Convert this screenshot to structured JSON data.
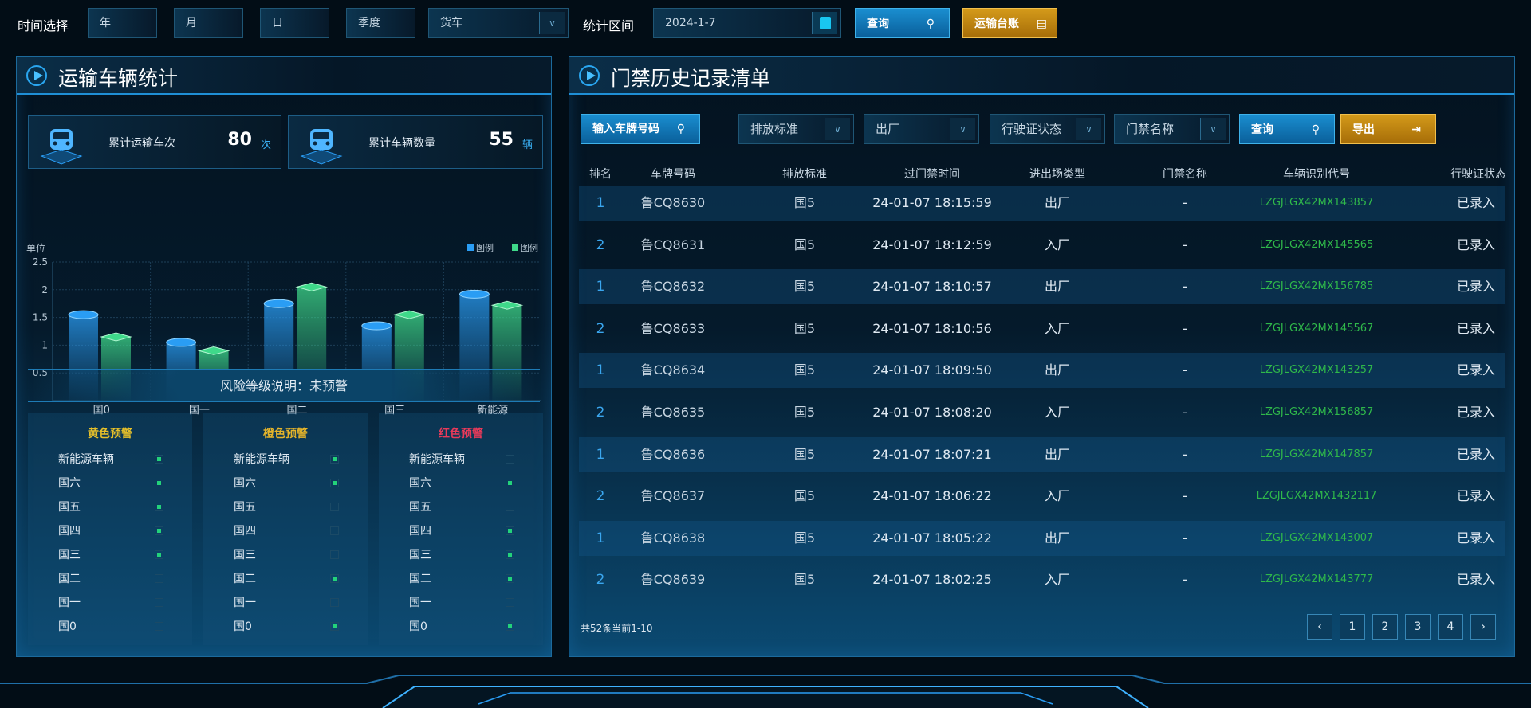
{
  "toolbar": {
    "time_label": "时间选择",
    "year": "年",
    "month": "月",
    "day": "日",
    "quarter": "季度",
    "vehicle_type": "货车",
    "range_label": "统计区间",
    "date": "2024-1-7",
    "query": "查询",
    "ledger": "运输台账"
  },
  "left": {
    "title": "运输车辆统计",
    "cards": [
      {
        "label": "累计运输车次",
        "value": "80",
        "unit": "次"
      },
      {
        "label": "累计车辆数量",
        "value": "55",
        "unit": "辆"
      }
    ],
    "risk_label": "风险等级说明：未预警",
    "risk_columns": [
      {
        "title": "黄色预警",
        "color": "#e6c02a",
        "items": [
          [
            "新能源车辆",
            true
          ],
          [
            "国六",
            true
          ],
          [
            "国五",
            true
          ],
          [
            "国四",
            true
          ],
          [
            "国三",
            true
          ],
          [
            "国二",
            false
          ],
          [
            "国一",
            false
          ],
          [
            "国0",
            false
          ]
        ]
      },
      {
        "title": "橙色预警",
        "color": "#e6b52a",
        "items": [
          [
            "新能源车辆",
            true
          ],
          [
            "国六",
            true
          ],
          [
            "国五",
            false
          ],
          [
            "国四",
            false
          ],
          [
            "国三",
            false
          ],
          [
            "国二",
            true
          ],
          [
            "国一",
            false
          ],
          [
            "国0",
            true
          ]
        ]
      },
      {
        "title": "红色预警",
        "color": "#e83a5a",
        "items": [
          [
            "新能源车辆",
            false
          ],
          [
            "国六",
            true
          ],
          [
            "国五",
            false
          ],
          [
            "国四",
            true
          ],
          [
            "国三",
            true
          ],
          [
            "国二",
            true
          ],
          [
            "国一",
            false
          ],
          [
            "国0",
            true
          ]
        ]
      }
    ]
  },
  "chart_data": {
    "type": "bar",
    "ylabel": "单位",
    "categories": [
      "国0",
      "国一",
      "国二",
      "国三",
      "新能源"
    ],
    "series": [
      {
        "name": "图例",
        "color": "#2a9df4",
        "values": [
          1.55,
          1.05,
          1.75,
          1.35,
          1.92
        ]
      },
      {
        "name": "图例",
        "color": "#3fd98a",
        "values": [
          1.15,
          0.9,
          2.05,
          1.55,
          1.72
        ]
      }
    ],
    "ylim": [
      0,
      2.5
    ],
    "yticks": [
      "0.5",
      "1",
      "1.5",
      "2",
      "2.5"
    ],
    "grid": true,
    "legend": "top-right"
  },
  "right": {
    "title": "门禁历史记录清单",
    "filters": {
      "plate_placeholder": "输入车牌号码",
      "emission": "排放标准",
      "direction": "出厂",
      "license_status": "行驶证状态",
      "gate_name": "门禁名称",
      "query": "查询",
      "export": "导出"
    },
    "columns": [
      "排名",
      "车牌号码",
      "排放标准",
      "过门禁时间",
      "进出场类型",
      "门禁名称",
      "车辆识别代号",
      "行驶证状态"
    ],
    "rows": [
      [
        "1",
        "鲁CQ8630",
        "国5",
        "24-01-07 18:15:59",
        "出厂",
        "-",
        "LZGJLGX42MX143857",
        "已录入"
      ],
      [
        "2",
        "鲁CQ8631",
        "国5",
        "24-01-07 18:12:59",
        "入厂",
        "-",
        "LZGJLGX42MX145565",
        "已录入"
      ],
      [
        "1",
        "鲁CQ8632",
        "国5",
        "24-01-07 18:10:57",
        "出厂",
        "-",
        "LZGJLGX42MX156785",
        "已录入"
      ],
      [
        "2",
        "鲁CQ8633",
        "国5",
        "24-01-07 18:10:56",
        "入厂",
        "-",
        "LZGJLGX42MX145567",
        "已录入"
      ],
      [
        "1",
        "鲁CQ8634",
        "国5",
        "24-01-07 18:09:50",
        "出厂",
        "-",
        "LZGJLGX42MX143257",
        "已录入"
      ],
      [
        "2",
        "鲁CQ8635",
        "国5",
        "24-01-07 18:08:20",
        "入厂",
        "-",
        "LZGJLGX42MX156857",
        "已录入"
      ],
      [
        "1",
        "鲁CQ8636",
        "国5",
        "24-01-07 18:07:21",
        "出厂",
        "-",
        "LZGJLGX42MX147857",
        "已录入"
      ],
      [
        "2",
        "鲁CQ8637",
        "国5",
        "24-01-07 18:06:22",
        "入厂",
        "-",
        "LZGJLGX42MX1432117",
        "已录入"
      ],
      [
        "1",
        "鲁CQ8638",
        "国5",
        "24-01-07 18:05:22",
        "出厂",
        "-",
        "LZGJLGX42MX143007",
        "已录入"
      ],
      [
        "2",
        "鲁CQ8639",
        "国5",
        "24-01-07 18:02:25",
        "入厂",
        "-",
        "LZGJLGX42MX143777",
        "已录入"
      ]
    ],
    "pagination": {
      "summary": "共52条当前1-10",
      "prev": "‹",
      "pages": [
        "1",
        "2",
        "3",
        "4"
      ],
      "next": "›"
    }
  },
  "colors": {
    "accent": "#2a9df4",
    "vin": "#2fb84a",
    "rank": "#3aa6ee"
  }
}
